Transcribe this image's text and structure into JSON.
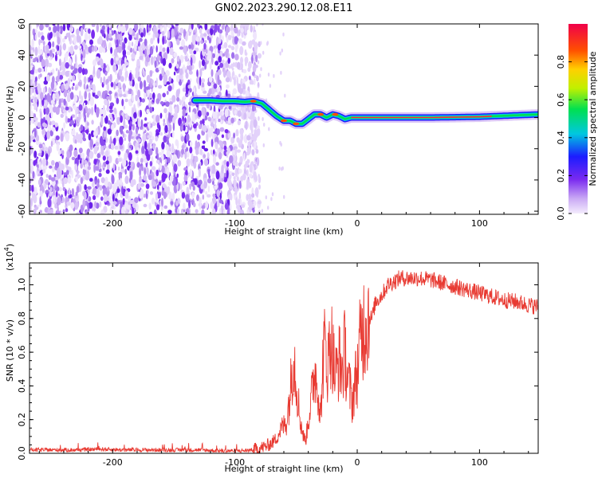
{
  "figure": {
    "title": "GN02.2023.290.12.08.E11"
  },
  "chart_data": [
    {
      "type": "heatmap",
      "title": "GN02.2023.290.12.08.E11",
      "xlabel": "Height of straight line (km)",
      "ylabel": "Frequency (Hz)",
      "xlim": [
        -268,
        148
      ],
      "ylim": [
        -62,
        60
      ],
      "xticks": [
        -200,
        -100,
        0,
        100
      ],
      "yticks": [
        -60,
        -40,
        -20,
        0,
        20,
        40,
        60
      ],
      "xtick_labels": [
        "-200",
        "-100",
        "0",
        "100"
      ],
      "ytick_labels": [
        "-60",
        "-40",
        "-20",
        "0",
        "20",
        "40",
        "60"
      ],
      "colorbar": {
        "label": "Normalized spectral amplitude",
        "range": [
          0,
          1
        ],
        "ticks": [
          0.0,
          0.2,
          0.4,
          0.6,
          0.8
        ],
        "tick_labels": [
          "0.0",
          "0.2",
          "0.4",
          "0.6",
          "0.8"
        ],
        "colormap": "rainbow",
        "colors": [
          "#f4ecfd",
          "#b58cf0",
          "#7a2af0",
          "#1c1cff",
          "#00c8e0",
          "#00e050",
          "#c0f000",
          "#ffd000",
          "#ff5000",
          "#f0004a"
        ]
      },
      "noise_region_km": [
        -268,
        -85
      ],
      "dominant_frequency_track": {
        "x": [
          -133,
          -120,
          -110,
          -100,
          -92,
          -85,
          -78,
          -72,
          -66,
          -60,
          -55,
          -50,
          -45,
          -40,
          -35,
          -30,
          -25,
          -20,
          -15,
          -10,
          -5,
          0,
          20,
          60,
          100,
          148
        ],
        "y": [
          11,
          11,
          10.5,
          10.5,
          10,
          10.5,
          9,
          5,
          1,
          -2,
          -2,
          -4,
          -4,
          -1,
          2,
          2,
          0,
          2,
          1,
          -1,
          0,
          0,
          0,
          0,
          0.5,
          2
        ]
      }
    },
    {
      "type": "line",
      "title": "",
      "xlabel": "Height of straight line (km)",
      "ylabel": "SNR (10 * v/v)",
      "scale_label": "(x10",
      "scale_exponent": "4",
      "scale_suffix": ")",
      "xlim": [
        -268,
        148
      ],
      "ylim": [
        0,
        1.13
      ],
      "xticks": [
        -200,
        -100,
        0,
        100
      ],
      "yticks": [
        0.0,
        0.2,
        0.4,
        0.6,
        0.8,
        1.0
      ],
      "xtick_labels": [
        "-200",
        "-100",
        "0",
        "100"
      ],
      "ytick_labels": [
        "0.0",
        "0.2",
        "0.4",
        "0.6",
        "0.8",
        "1.0"
      ],
      "line_color": "#e83a32",
      "series": [
        {
          "x": [
            -268,
            -250,
            -230,
            -210,
            -190,
            -170,
            -150,
            -130,
            -110,
            -95,
            -85,
            -80,
            -75,
            -70,
            -66,
            -62,
            -58,
            -55,
            -52,
            -50,
            -47,
            -44,
            -42,
            -40,
            -37,
            -35,
            -32,
            -30,
            -28,
            -26,
            -24,
            -22,
            -20,
            -18,
            -15,
            -12,
            -10,
            -8,
            -6,
            -4,
            -2,
            0,
            3,
            6,
            9,
            12,
            15,
            18,
            21,
            25,
            30,
            35,
            40,
            50,
            60,
            70,
            80,
            90,
            100,
            110,
            120,
            130,
            140,
            148
          ],
          "y": [
            0.02,
            0.02,
            0.02,
            0.025,
            0.02,
            0.02,
            0.02,
            0.02,
            0.015,
            0.015,
            0.02,
            0.03,
            0.04,
            0.06,
            0.09,
            0.15,
            0.18,
            0.35,
            0.6,
            0.45,
            0.22,
            0.1,
            0.08,
            0.2,
            0.35,
            0.5,
            0.4,
            0.2,
            0.55,
            0.65,
            0.5,
            0.7,
            0.6,
            0.45,
            0.55,
            0.5,
            0.62,
            0.45,
            0.38,
            0.3,
            0.42,
            0.48,
            0.7,
            0.78,
            0.82,
            0.8,
            0.9,
            0.92,
            0.95,
            1.0,
            1.02,
            1.04,
            1.04,
            1.04,
            1.03,
            1.01,
            0.99,
            0.97,
            0.95,
            0.93,
            0.91,
            0.9,
            0.88,
            0.87
          ]
        }
      ]
    }
  ]
}
